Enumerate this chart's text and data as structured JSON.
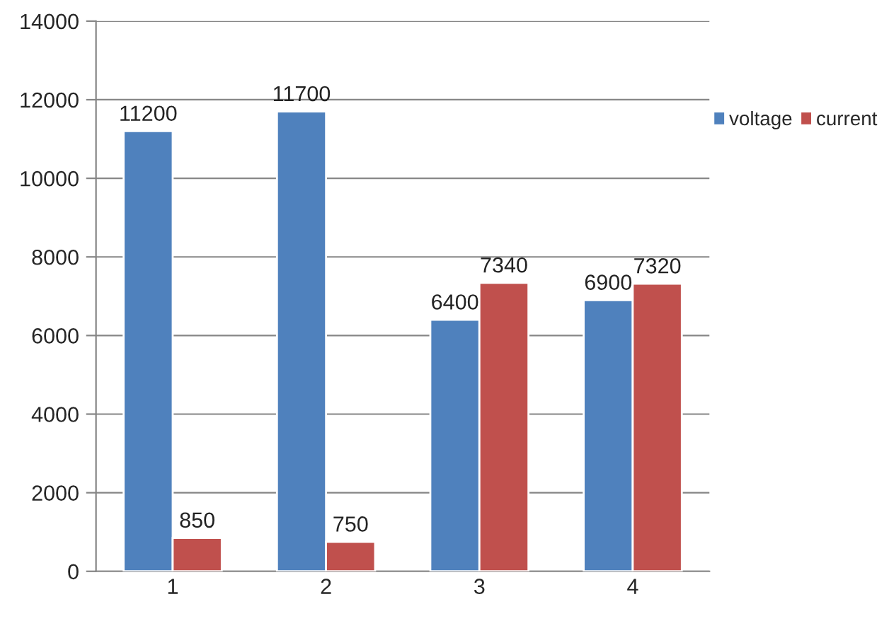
{
  "chart_data": {
    "type": "bar",
    "categories": [
      "1",
      "2",
      "3",
      "4"
    ],
    "series": [
      {
        "name": "voltage",
        "color": "#4f81bd",
        "values": [
          11200,
          11700,
          6400,
          6900
        ]
      },
      {
        "name": "current",
        "color": "#c0504d",
        "values": [
          850,
          750,
          7340,
          7320
        ]
      }
    ],
    "ylim": [
      0,
      14000
    ],
    "yticks": [
      0,
      2000,
      4000,
      6000,
      8000,
      10000,
      12000,
      14000
    ],
    "grid": "y",
    "legend": "right",
    "data_labels": true
  }
}
